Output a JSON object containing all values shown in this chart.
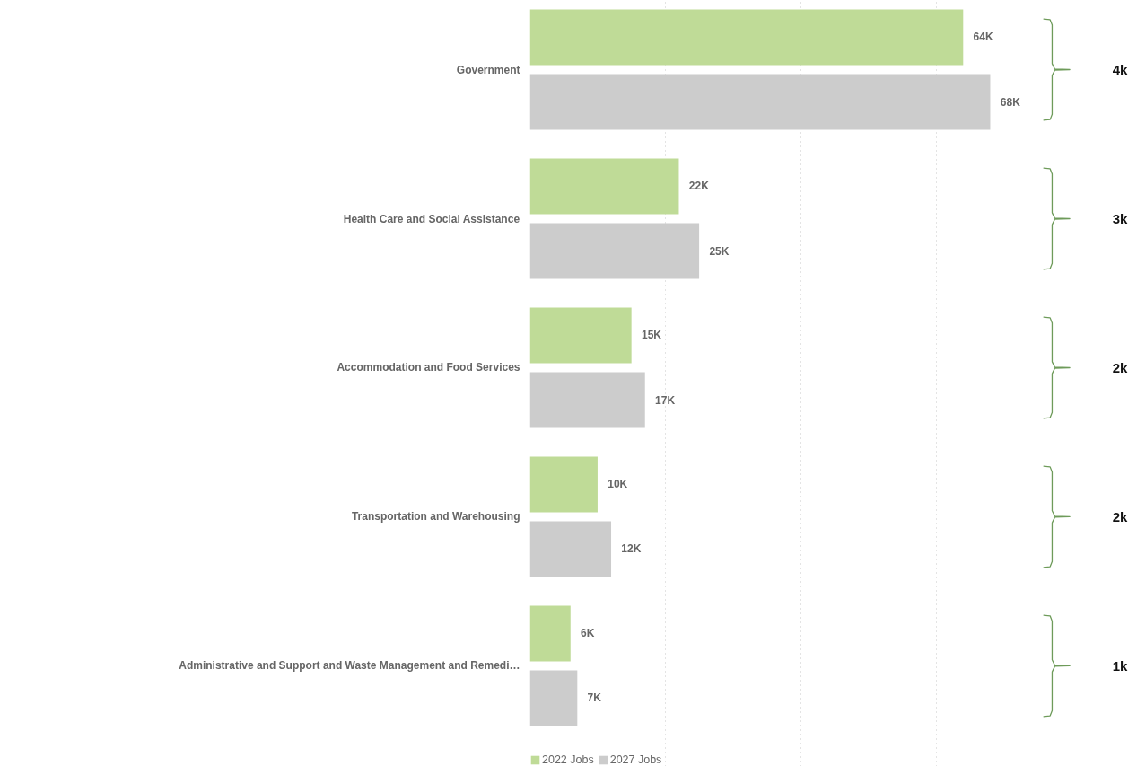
{
  "chart_data": {
    "type": "bar",
    "orientation": "horizontal",
    "categories": [
      "Government",
      "Health Care and Social Assistance",
      "Accommodation and Food Services",
      "Transportation and Warehousing",
      "Administrative and Support and Waste Management and Remedi…"
    ],
    "series": [
      {
        "name": "2022 Jobs",
        "color": "#bfdb97",
        "values": [
          64,
          22,
          15,
          10,
          6
        ],
        "value_labels": [
          "64K",
          "22K",
          "15K",
          "10K",
          "6K"
        ]
      },
      {
        "name": "2027 Jobs",
        "color": "#cccccc",
        "values": [
          68,
          25,
          17,
          12,
          7
        ],
        "value_labels": [
          "68K",
          "25K",
          "17K",
          "12K",
          "7K"
        ]
      }
    ],
    "xticks": [
      {
        "value": 20,
        "label": null
      },
      {
        "value": 40,
        "label": null
      },
      {
        "value": 60,
        "label": null
      }
    ],
    "tick_labels": "y",
    "grid": "x",
    "legend": "bottom",
    "annotations": [
      "4k",
      "3k",
      "2k",
      "2k",
      "1k"
    ]
  }
}
